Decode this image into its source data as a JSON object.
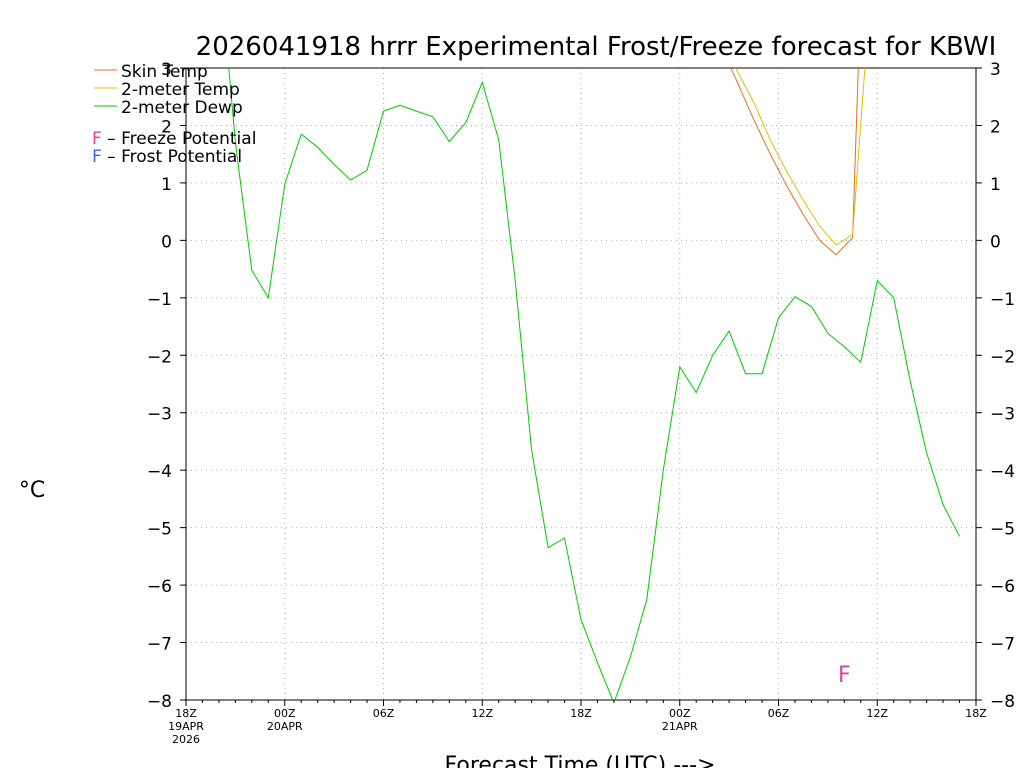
{
  "chart_data": {
    "type": "line",
    "title": "2026041918 hrrr Experimental Frost/Freeze forecast for KBWI",
    "ylabel": "°C",
    "xlabel": "Forecast Time (UTC) --->",
    "xlim": [
      0,
      48
    ],
    "ylim": [
      -8,
      3
    ],
    "y_ticks": [
      3,
      2,
      1,
      0,
      -1,
      -2,
      -3,
      -4,
      -5,
      -6,
      -7,
      -8
    ],
    "x_ticks": [
      {
        "x": 0,
        "label": "18Z",
        "sub1": "19APR",
        "sub2": "2026"
      },
      {
        "x": 6,
        "label": "00Z",
        "sub1": "20APR",
        "sub2": ""
      },
      {
        "x": 12,
        "label": "06Z",
        "sub1": "",
        "sub2": ""
      },
      {
        "x": 18,
        "label": "12Z",
        "sub1": "",
        "sub2": ""
      },
      {
        "x": 24,
        "label": "18Z",
        "sub1": "",
        "sub2": ""
      },
      {
        "x": 30,
        "label": "00Z",
        "sub1": "21APR",
        "sub2": ""
      },
      {
        "x": 36,
        "label": "06Z",
        "sub1": "",
        "sub2": ""
      },
      {
        "x": 42,
        "label": "12Z",
        "sub1": "",
        "sub2": ""
      },
      {
        "x": 48,
        "label": "18Z",
        "sub1": "",
        "sub2": ""
      }
    ],
    "grid": true,
    "legend_position": "top-left",
    "series": [
      {
        "name": "Skin Temp",
        "color": "#e07020",
        "points": [
          [
            33.1,
            3.0
          ],
          [
            33.5,
            2.75
          ],
          [
            34.5,
            2.1
          ],
          [
            35.5,
            1.5
          ],
          [
            36.5,
            0.95
          ],
          [
            37.5,
            0.45
          ],
          [
            38.5,
            0.0
          ],
          [
            39.5,
            -0.25
          ],
          [
            40.5,
            0.05
          ],
          [
            40.85,
            3.0
          ]
        ]
      },
      {
        "name": "2-meter Temp",
        "color": "#e0c000",
        "points": [
          [
            33.4,
            3.0
          ],
          [
            34.5,
            2.4
          ],
          [
            35.5,
            1.75
          ],
          [
            36.5,
            1.2
          ],
          [
            37.5,
            0.7
          ],
          [
            38.5,
            0.25
          ],
          [
            39.5,
            -0.08
          ],
          [
            40.5,
            0.1
          ],
          [
            41.25,
            3.0
          ]
        ]
      },
      {
        "name": "2-meter Dewp",
        "color": "#00cc00",
        "points": [
          [
            2.6,
            3.0
          ],
          [
            3.0,
            1.7
          ],
          [
            4.0,
            -0.52
          ],
          [
            5.0,
            -1.0
          ],
          [
            6.0,
            0.98
          ],
          [
            7.0,
            1.85
          ],
          [
            8.0,
            1.62
          ],
          [
            9.0,
            1.32
          ],
          [
            10.0,
            1.05
          ],
          [
            11.0,
            1.22
          ],
          [
            12.0,
            2.25
          ],
          [
            13.0,
            2.35
          ],
          [
            14.0,
            2.25
          ],
          [
            15.0,
            2.15
          ],
          [
            16.0,
            1.72
          ],
          [
            17.0,
            2.05
          ],
          [
            18.0,
            2.75
          ],
          [
            19.0,
            1.75
          ],
          [
            20.0,
            -0.7
          ],
          [
            21.0,
            -3.65
          ],
          [
            22.0,
            -5.35
          ],
          [
            23.0,
            -5.18
          ],
          [
            24.0,
            -6.6
          ],
          [
            25.0,
            -7.35
          ],
          [
            26.0,
            -8.05
          ],
          [
            27.0,
            -7.25
          ],
          [
            28.0,
            -6.25
          ],
          [
            29.0,
            -4.0
          ],
          [
            30.0,
            -2.2
          ],
          [
            31.0,
            -2.65
          ],
          [
            32.0,
            -2.0
          ],
          [
            33.0,
            -1.58
          ],
          [
            34.0,
            -2.32
          ],
          [
            35.0,
            -2.32
          ],
          [
            36.0,
            -1.35
          ],
          [
            37.0,
            -0.98
          ],
          [
            38.0,
            -1.15
          ],
          [
            39.0,
            -1.62
          ],
          [
            40.0,
            -1.85
          ],
          [
            41.0,
            -2.12
          ],
          [
            42.0,
            -0.7
          ],
          [
            43.0,
            -1.0
          ],
          [
            44.0,
            -2.45
          ],
          [
            45.0,
            -3.7
          ],
          [
            46.0,
            -4.6
          ],
          [
            47.0,
            -5.15
          ]
        ]
      }
    ],
    "potential_legend": [
      {
        "letter": "F",
        "text": " – Freeze Potential",
        "color": "#e040a0"
      },
      {
        "letter": "F",
        "text": " – Frost Potential",
        "color": "#4060e0"
      }
    ],
    "markers": [
      {
        "x": 40.0,
        "y": -7.55,
        "letter": "F",
        "kind": "freeze",
        "color": "#e040a0"
      }
    ]
  }
}
